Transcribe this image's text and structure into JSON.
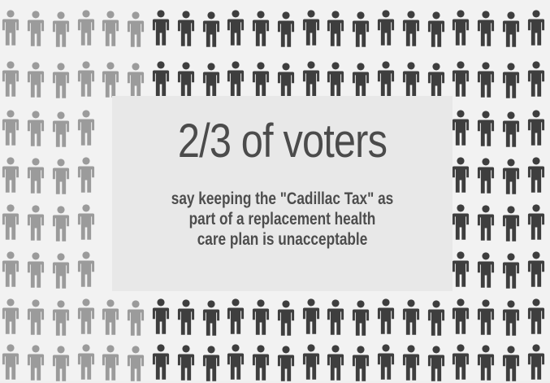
{
  "chart_data": {
    "type": "table",
    "headline": "2/3 of voters",
    "subtitle_lines": [
      "say keeping the \"Cadillac Tax\" as",
      "part of a replacement health",
      "care plan is unacceptable"
    ],
    "proportion_unacceptable": 0.6667,
    "colors": {
      "light_figures": "#9b9b9b",
      "dark_figures": "#3e3e3e",
      "panel_background": "#e8e8e8",
      "background": "#f2f2f2"
    }
  }
}
